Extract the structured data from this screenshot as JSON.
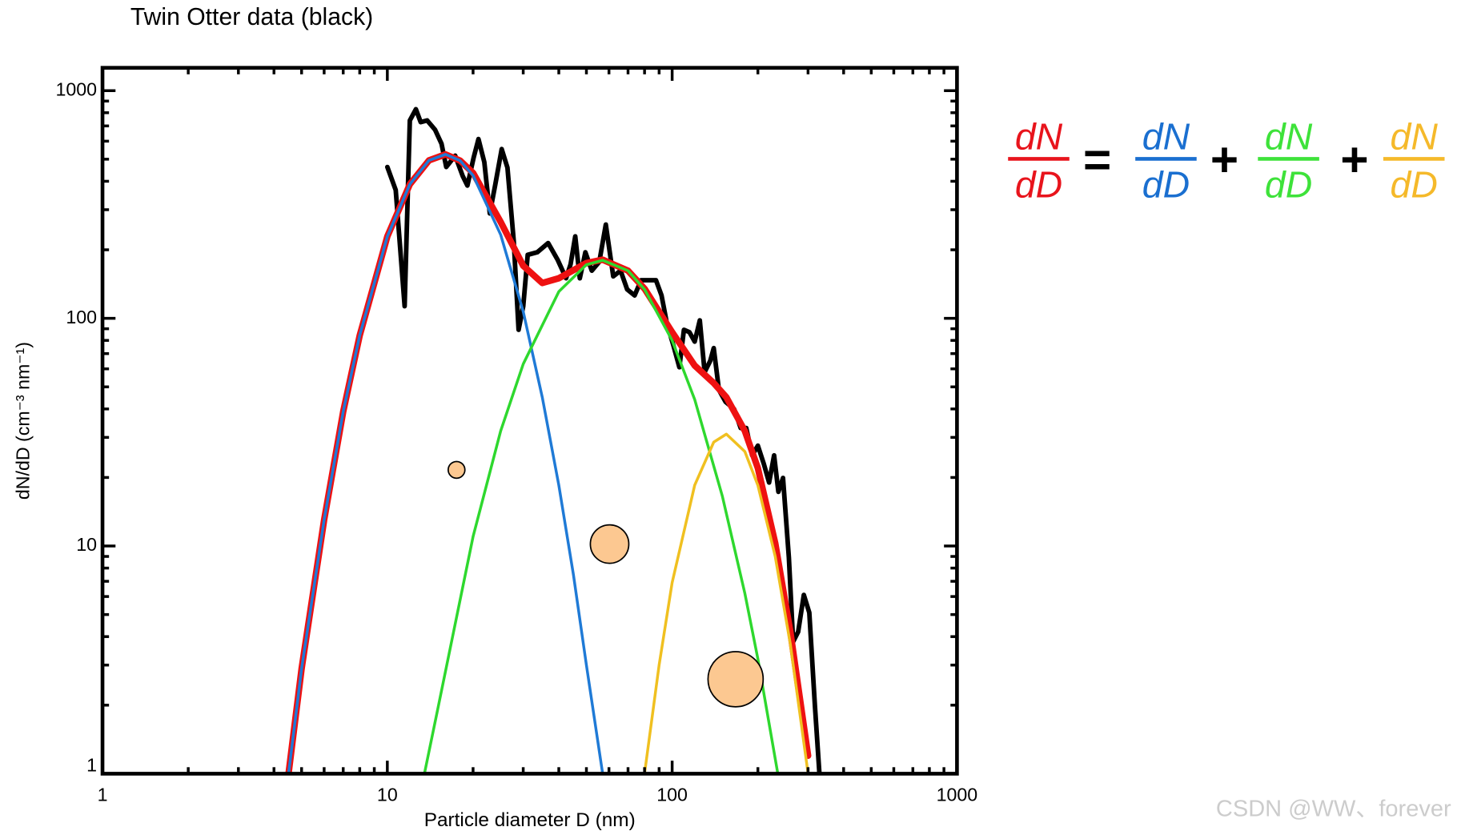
{
  "chart_data": {
    "type": "line",
    "title": "Twin Otter data (black)",
    "xlabel": "Particle diameter D (nm)",
    "ylabel": "dN/dD (cm⁻³ nm⁻¹)",
    "xlog": true,
    "ylog": true,
    "xlim": [
      1,
      1000
    ],
    "ylim": [
      1,
      1260
    ],
    "xticks": [
      1,
      10,
      100,
      1000
    ],
    "yticks": [
      1,
      10,
      100,
      1000
    ],
    "xminor": [
      2,
      3,
      4,
      5,
      6,
      7,
      8,
      9,
      20,
      30,
      40,
      50,
      60,
      70,
      80,
      90,
      200,
      300,
      400,
      500,
      600,
      700,
      800,
      900
    ],
    "yminor": [
      2,
      3,
      4,
      5,
      6,
      7,
      8,
      9,
      20,
      30,
      40,
      50,
      60,
      70,
      80,
      90,
      200,
      300,
      400,
      500,
      600,
      700,
      800,
      900
    ],
    "series": [
      {
        "color": "#000000",
        "width": 5,
        "x": [
          10.0,
          10.7,
          11.5,
          12.0,
          12.6,
          13.1,
          13.8,
          14.7,
          15.5,
          16.1,
          17.3,
          18.4,
          19.1,
          20.1,
          20.9,
          21.9,
          22.9,
          23.9,
          25.2,
          26.4,
          27.8,
          28.9,
          30.0,
          31.1,
          33.6,
          36.7,
          39.6,
          42.4,
          44.0,
          45.7,
          47.4,
          49.6,
          52.2,
          55.5,
          58.5,
          62.1,
          65.9,
          69.5,
          73.8,
          77.8,
          82.6,
          87.7,
          91.8,
          96.0,
          101,
          106,
          110,
          115,
          120,
          125,
          130,
          136,
          140,
          146,
          154,
          165,
          174,
          182,
          191,
          200,
          210,
          219,
          228,
          236,
          245,
          257,
          266,
          277,
          290,
          303,
          317,
          329
        ],
        "values": [
          462,
          366,
          113,
          740,
          829,
          727,
          740,
          674,
          585,
          462,
          518,
          421,
          383,
          508,
          613,
          485,
          289,
          383,
          554,
          459,
          218,
          89,
          113,
          190,
          195,
          214,
          181,
          150,
          173,
          229,
          150,
          195,
          162,
          177,
          258,
          153,
          162,
          134,
          126,
          147,
          147,
          147,
          126,
          94,
          76,
          61,
          89,
          87,
          79,
          98,
          58,
          65,
          74,
          48.5,
          43,
          40,
          33,
          33,
          25,
          27.6,
          22.9,
          19.0,
          25,
          17.3,
          19.9,
          8.9,
          3.8,
          4.2,
          6.1,
          5.1,
          2.0,
          1.0
        ]
      },
      {
        "color": "#ee1111",
        "width": 7,
        "x": [
          4.5,
          5,
          6,
          7,
          8,
          10,
          12,
          14,
          16,
          18,
          20,
          25,
          30,
          35,
          40,
          50,
          57,
          70,
          80,
          100,
          120,
          140,
          155,
          180,
          200,
          230,
          260,
          300
        ],
        "values": [
          1,
          2.9,
          13,
          39,
          84,
          229,
          388,
          494,
          525,
          493,
          435,
          265,
          170,
          143,
          150,
          175,
          181,
          162,
          135,
          87,
          62,
          52,
          45,
          32,
          22,
          10.3,
          4.2,
          1.2
        ]
      },
      {
        "color": "#1f7ad6",
        "width": 3,
        "x": [
          4.5,
          5,
          6,
          7,
          8,
          10,
          12,
          14,
          16,
          18,
          20,
          25,
          30,
          35,
          40,
          45,
          50,
          57
        ],
        "values": [
          1,
          2.9,
          13,
          39,
          84,
          229,
          388,
          494,
          525,
          493,
          424,
          233,
          107,
          45,
          18.5,
          7.5,
          3.0,
          1.0
        ]
      },
      {
        "color": "#2ed82e",
        "width": 3,
        "x": [
          13.5,
          15,
          20,
          25,
          30,
          40,
          50,
          57,
          70,
          80,
          100,
          120,
          150,
          180,
          200,
          235
        ],
        "values": [
          1.0,
          1.9,
          11,
          32,
          63,
          131,
          172,
          180,
          162,
          134,
          80,
          44,
          16.6,
          6.2,
          3.2,
          1.0
        ]
      },
      {
        "color": "#f0c020",
        "width": 3,
        "x": [
          80,
          90,
          100,
          120,
          140,
          155,
          180,
          200,
          230,
          260,
          300
        ],
        "values": [
          1.0,
          3.0,
          6.9,
          18.5,
          28.6,
          31,
          26,
          18.5,
          9.0,
          3.7,
          1.0
        ]
      }
    ],
    "markers": {
      "color": "#fcc891",
      "x": [
        17.5,
        60.3,
        167
      ],
      "values": [
        21.6,
        10.2,
        2.6
      ],
      "sizes": [
        1,
        2.3,
        3.3
      ]
    },
    "equation": {
      "equals": "=",
      "plus": "+",
      "terms": [
        {
          "num": "dN",
          "den": "dD",
          "color": "#e8141c"
        },
        {
          "num": "dN",
          "den": "dD",
          "color": "#1a6fd0"
        },
        {
          "num": "dN",
          "den": "dD",
          "color": "#3ee23a"
        },
        {
          "num": "dN",
          "den": "dD",
          "color": "#f5b92a"
        }
      ]
    },
    "watermark": "CSDN @WW、forever"
  }
}
